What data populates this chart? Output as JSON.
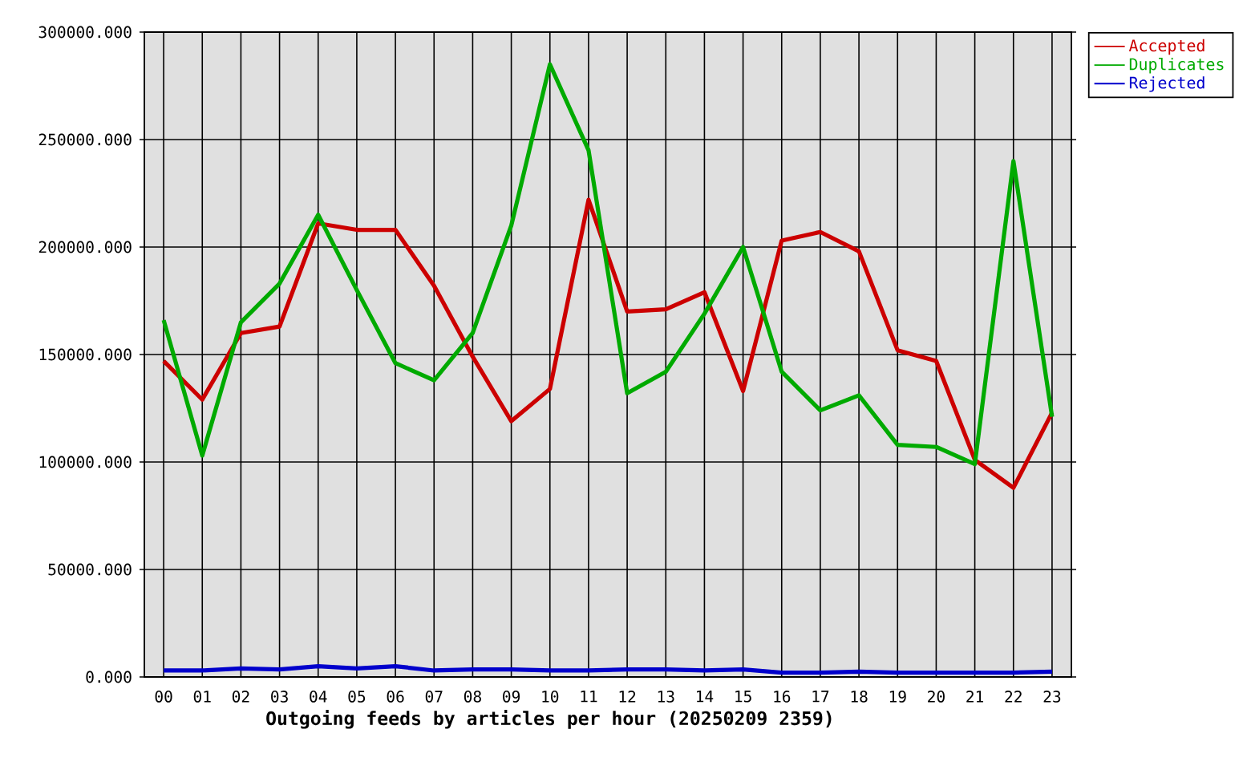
{
  "chart_data": {
    "type": "line",
    "xlabel": "Outgoing feeds by articles per hour (20250209 2359)",
    "categories": [
      "00",
      "01",
      "02",
      "03",
      "04",
      "05",
      "06",
      "07",
      "08",
      "09",
      "10",
      "11",
      "12",
      "13",
      "14",
      "15",
      "16",
      "17",
      "18",
      "19",
      "20",
      "21",
      "22",
      "23"
    ],
    "series": [
      {
        "name": "Accepted",
        "color": "#cc0000",
        "values": [
          147000,
          129000,
          160000,
          163000,
          211000,
          208000,
          208000,
          182000,
          149000,
          119000,
          134000,
          222000,
          170000,
          171000,
          179000,
          133000,
          203000,
          207000,
          198000,
          152000,
          147000,
          101000,
          88000,
          123000
        ]
      },
      {
        "name": "Duplicates",
        "color": "#00aa00",
        "values": [
          166000,
          103000,
          165000,
          183000,
          215000,
          180000,
          146000,
          138000,
          160000,
          210000,
          285000,
          245000,
          132000,
          142000,
          169000,
          200000,
          142000,
          124000,
          131000,
          108000,
          107000,
          99000,
          240000,
          121000
        ]
      },
      {
        "name": "Rejected",
        "color": "#0000cc",
        "values": [
          3000,
          3000,
          4000,
          3500,
          5000,
          4000,
          5000,
          3000,
          3500,
          3500,
          3000,
          3000,
          3500,
          3500,
          3000,
          3500,
          2000,
          2000,
          2500,
          2000,
          2000,
          2000,
          2000,
          2500
        ]
      }
    ],
    "ylim": [
      0,
      300000
    ],
    "yticks": [
      {
        "value": 0,
        "label": "0.000"
      },
      {
        "value": 50000,
        "label": "50000.000"
      },
      {
        "value": 100000,
        "label": "100000.000"
      },
      {
        "value": 150000,
        "label": "150000.000"
      },
      {
        "value": 200000,
        "label": "200000.000"
      },
      {
        "value": 250000,
        "label": "250000.000"
      },
      {
        "value": 300000,
        "label": "300000.000"
      }
    ],
    "grid": true,
    "legend": "top right",
    "line_style": "solid"
  }
}
